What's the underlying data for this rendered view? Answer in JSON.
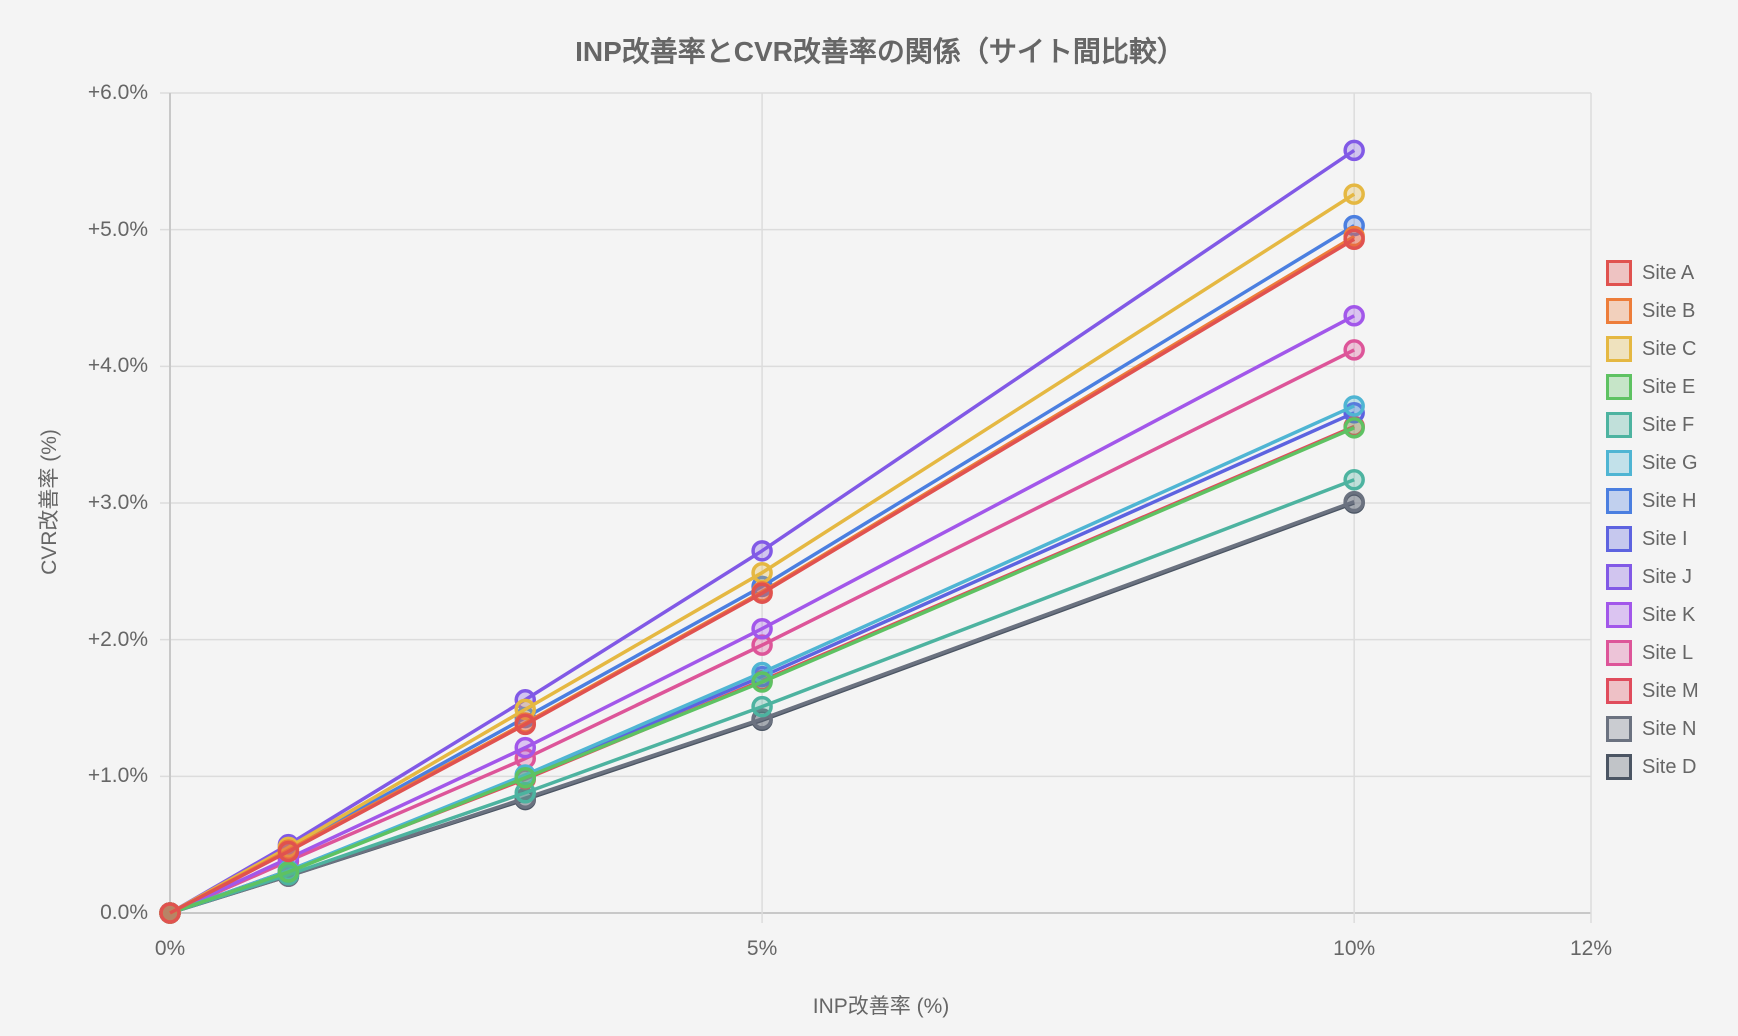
{
  "chart_data": {
    "type": "line",
    "title": "INP改善率とCVR改善率の関係（サイト間比較）",
    "xlabel": "INP改善率 (%)",
    "ylabel": "CVR改善率 (%)",
    "xlim": [
      0,
      12
    ],
    "ylim": [
      0,
      6
    ],
    "x_ticks": [
      "0%",
      "5%",
      "10%",
      "12%"
    ],
    "y_ticks": [
      "0.0%",
      "+1.0%",
      "+2.0%",
      "+3.0%",
      "+4.0%",
      "+5.0%",
      "+6.0%"
    ],
    "grid": true,
    "legend_position": "right",
    "x": [
      0,
      1,
      3,
      5,
      10
    ],
    "series": [
      {
        "name": "Site A",
        "color": "#e0524f",
        "values": [
          0,
          0.45,
          1.38,
          2.34,
          4.93
        ]
      },
      {
        "name": "Site B",
        "color": "#ed7d3a",
        "values": [
          0,
          0.46,
          1.39,
          2.35,
          4.95
        ]
      },
      {
        "name": "Site C",
        "color": "#e5b842",
        "values": [
          0,
          0.48,
          1.49,
          2.49,
          5.26
        ]
      },
      {
        "name": "Site E",
        "color": "#5ec262",
        "values": [
          0,
          0.3,
          0.99,
          1.69,
          3.55
        ]
      },
      {
        "name": "Site F",
        "color": "#4db3a0",
        "values": [
          0,
          0.28,
          0.88,
          1.51,
          3.17
        ]
      },
      {
        "name": "Site G",
        "color": "#4fb5d3",
        "values": [
          0,
          0.31,
          1.01,
          1.76,
          3.71
        ]
      },
      {
        "name": "Site H",
        "color": "#4b7fe0",
        "values": [
          0,
          0.47,
          1.43,
          2.39,
          5.03
        ]
      },
      {
        "name": "Site I",
        "color": "#5d63e0",
        "values": [
          0,
          0.31,
          1.0,
          1.73,
          3.66
        ]
      },
      {
        "name": "Site J",
        "color": "#8159e6",
        "values": [
          0,
          0.5,
          1.56,
          2.65,
          5.58
        ]
      },
      {
        "name": "Site K",
        "color": "#a257ea",
        "values": [
          0,
          0.4,
          1.21,
          2.08,
          4.37
        ]
      },
      {
        "name": "Site L",
        "color": "#dd5599",
        "values": [
          0,
          0.38,
          1.13,
          1.96,
          4.12
        ]
      },
      {
        "name": "Site M",
        "color": "#e04c5c",
        "values": [
          0,
          0.31,
          0.98,
          1.7,
          3.56
        ]
      },
      {
        "name": "Site N",
        "color": "#6b7280",
        "values": [
          0,
          0.27,
          0.84,
          1.42,
          3.01
        ]
      },
      {
        "name": "Site D",
        "color": "#4b5563",
        "values": [
          0,
          0.27,
          0.83,
          1.41,
          3.0
        ]
      }
    ]
  }
}
